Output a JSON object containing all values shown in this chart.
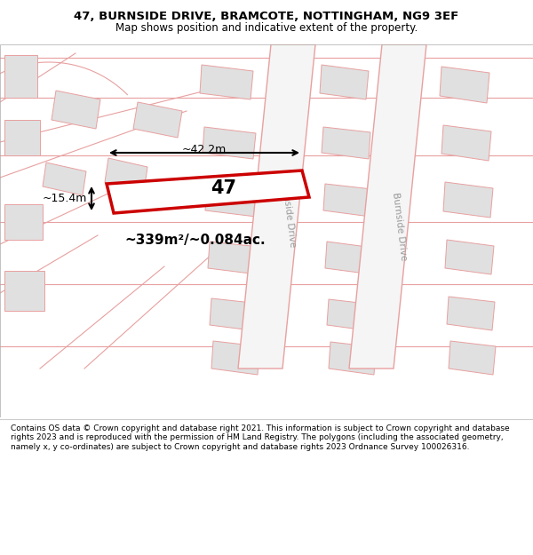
{
  "title_line1": "47, BURNSIDE DRIVE, BRAMCOTE, NOTTINGHAM, NG9 3EF",
  "title_line2": "Map shows position and indicative extent of the property.",
  "footer_text": "Contains OS data © Crown copyright and database right 2021. This information is subject to Crown copyright and database rights 2023 and is reproduced with the permission of HM Land Registry. The polygons (including the associated geometry, namely x, y co-ordinates) are subject to Crown copyright and database rights 2023 Ordnance Survey 100026316.",
  "area_text": "~339m²/~0.084ac.",
  "width_text": "~42.2m",
  "height_text": "~15.4m",
  "number_text": "47",
  "road_label": "Burnside Drive",
  "highlighted_color": "#cc0000",
  "building_fill": "#e0e0e0",
  "building_edge": "#e8a0a0",
  "road_line_color": "#e8a0a0",
  "map_bg": "#f0f0f0",
  "title_bg": "#ffffff",
  "footer_bg": "#ffffff"
}
